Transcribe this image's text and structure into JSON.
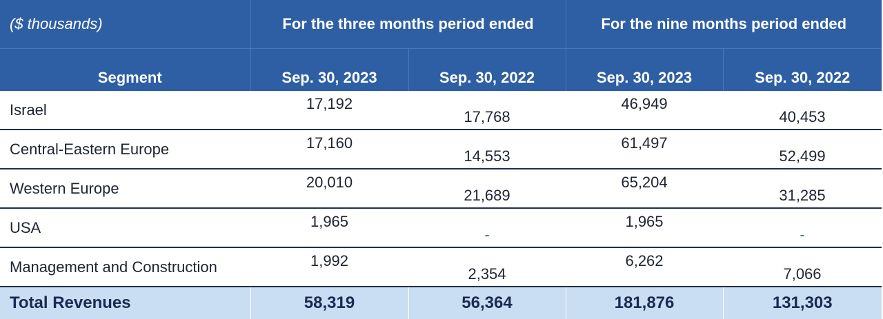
{
  "header": {
    "unit_label": "($ thousands)",
    "three_months_label": "For the three months period ended",
    "nine_months_label": "For the nine months period ended",
    "segment_label": "Segment",
    "dates": [
      "Sep. 30, 2023",
      "Sep. 30, 2022",
      "Sep. 30, 2023",
      "Sep. 30, 2022"
    ]
  },
  "rows": [
    {
      "segment": "Israel",
      "values": [
        "17,192",
        "17,768",
        "46,949",
        "40,453"
      ]
    },
    {
      "segment": "Central-Eastern Europe",
      "values": [
        "17,160",
        "14,553",
        "61,497",
        "52,499"
      ]
    },
    {
      "segment": "Western Europe",
      "values": [
        "20,010",
        "21,689",
        "65,204",
        "31,285"
      ]
    },
    {
      "segment": "USA",
      "values": [
        "1,965",
        "-",
        "1,965",
        "-"
      ]
    },
    {
      "segment": "Management and Construction",
      "values": [
        "1,992",
        "2,354",
        "6,262",
        "7,066"
      ]
    }
  ],
  "total": {
    "label": "Total Revenues",
    "values": [
      "58,319",
      "56,364",
      "181,876",
      "131,303"
    ]
  },
  "colors": {
    "header_bg": "#2e5fa4",
    "total_bg": "#c9ddf3",
    "row_border": "#1f2d4d"
  }
}
